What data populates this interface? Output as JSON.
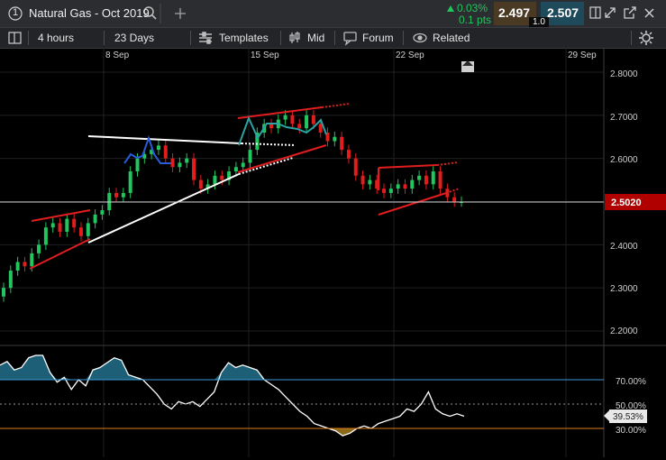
{
  "instrument": {
    "number": "1",
    "title": "Natural Gas - Oct 2019"
  },
  "quote": {
    "change_pct": "0.03%",
    "change_pts": "0.1 pts",
    "sell": "2.497",
    "buy": "2.507",
    "spread": "1.0"
  },
  "toolbar": {
    "interval": "4 hours",
    "range": "23 Days",
    "templates": "Templates",
    "price_type": "Mid",
    "forum": "Forum",
    "related": "Related"
  },
  "colors": {
    "up": "#22c55e",
    "down": "#e11d1d",
    "osc_fill_high": "#1e5f78",
    "osc_fill_low": "#8a6a1a",
    "current_price_bg": "#b00000"
  },
  "icons": [
    "number-circle-icon",
    "search-icon",
    "add-icon",
    "panel-icon",
    "expand-icon",
    "popout-icon",
    "close-icon",
    "layout-icon",
    "templates-icon",
    "candles-icon",
    "forum-icon",
    "eye-icon",
    "settings-icon",
    "scroll-marker-icon"
  ],
  "chart_data": {
    "type": "candlestick",
    "x_ticks": [
      "8 Sep",
      "15 Sep",
      "22 Sep",
      "29 Sep"
    ],
    "y_ticks": [
      "2.8000",
      "2.7000",
      "2.6000",
      "2.5000",
      "2.4000",
      "2.3000",
      "2.2000"
    ],
    "y_range": [
      2.17,
      2.83
    ],
    "current_price": "2.5020",
    "close_approx": [
      2.3,
      2.34,
      2.36,
      2.35,
      2.38,
      2.4,
      2.44,
      2.45,
      2.43,
      2.46,
      2.44,
      2.42,
      2.45,
      2.47,
      2.48,
      2.52,
      2.51,
      2.52,
      2.57,
      2.6,
      2.61,
      2.62,
      2.63,
      2.6,
      2.58,
      2.59,
      2.6,
      2.55,
      2.53,
      2.54,
      2.56,
      2.55,
      2.57,
      2.58,
      2.59,
      2.62,
      2.66,
      2.68,
      2.67,
      2.69,
      2.7,
      2.68,
      2.67,
      2.7,
      2.68,
      2.66,
      2.64,
      2.65,
      2.62,
      2.6,
      2.56,
      2.54,
      2.55,
      2.53,
      2.52,
      2.53,
      2.54,
      2.53,
      2.55,
      2.56,
      2.54,
      2.57,
      2.53,
      2.51,
      2.5,
      2.5
    ],
    "oscillator": {
      "levels": [
        "70.00%",
        "50.00%",
        "30.00%"
      ],
      "current": "39.53%",
      "values": [
        82,
        85,
        78,
        80,
        88,
        90,
        90,
        76,
        68,
        72,
        62,
        70,
        65,
        78,
        80,
        84,
        88,
        86,
        74,
        72,
        70,
        64,
        58,
        50,
        46,
        52,
        50,
        52,
        48,
        54,
        60,
        76,
        84,
        80,
        82,
        80,
        78,
        70,
        66,
        62,
        56,
        50,
        44,
        40,
        34,
        32,
        30,
        28,
        24,
        26,
        30,
        32,
        30,
        34,
        36,
        38,
        40,
        46,
        44,
        50,
        60,
        46,
        42,
        40,
        42,
        40
      ]
    }
  }
}
